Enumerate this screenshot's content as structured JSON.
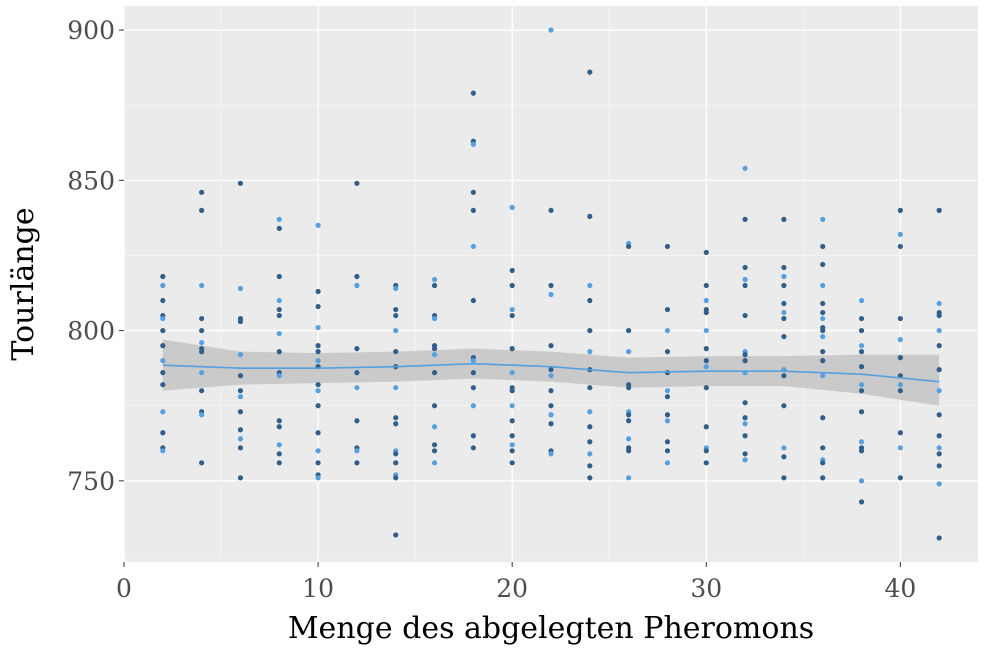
{
  "chart_data": {
    "type": "scatter",
    "title": "",
    "xlabel": "Menge des abgelegten Pheromons",
    "ylabel": "Tourlänge",
    "xlim": [
      0,
      44
    ],
    "ylim": [
      723,
      908
    ],
    "x_ticks": [
      0,
      10,
      20,
      30,
      40
    ],
    "y_ticks": [
      750,
      800,
      850,
      900
    ],
    "x_tick_labels": [
      "0",
      "10",
      "20",
      "30",
      "40"
    ],
    "y_tick_labels": [
      "750",
      "800",
      "850",
      "900"
    ],
    "grid": true,
    "legend": "none",
    "colors": {
      "panel_background": "#ebebeb",
      "grid_major": "#ffffff",
      "grid_minor": "#f5f5f5",
      "point_dark": "#2f5f8a",
      "point_light": "#56a0e0",
      "smooth_line": "#56a0e0",
      "confidence_band": "#c4c4c4",
      "axis_text": "#4d4d4d"
    },
    "points": [
      {
        "x": 2,
        "y": 818
      },
      {
        "x": 2,
        "y": 815
      },
      {
        "x": 2,
        "y": 810
      },
      {
        "x": 2,
        "y": 805
      },
      {
        "x": 2,
        "y": 804
      },
      {
        "x": 2,
        "y": 800
      },
      {
        "x": 2,
        "y": 795
      },
      {
        "x": 2,
        "y": 790
      },
      {
        "x": 2,
        "y": 786
      },
      {
        "x": 2,
        "y": 782
      },
      {
        "x": 2,
        "y": 773
      },
      {
        "x": 2,
        "y": 766
      },
      {
        "x": 2,
        "y": 761
      },
      {
        "x": 2,
        "y": 760
      },
      {
        "x": 4,
        "y": 846
      },
      {
        "x": 4,
        "y": 840
      },
      {
        "x": 4,
        "y": 815
      },
      {
        "x": 4,
        "y": 804
      },
      {
        "x": 4,
        "y": 800
      },
      {
        "x": 4,
        "y": 796
      },
      {
        "x": 4,
        "y": 794
      },
      {
        "x": 4,
        "y": 793
      },
      {
        "x": 4,
        "y": 786
      },
      {
        "x": 4,
        "y": 780
      },
      {
        "x": 4,
        "y": 773
      },
      {
        "x": 4,
        "y": 772
      },
      {
        "x": 4,
        "y": 756
      },
      {
        "x": 6,
        "y": 849
      },
      {
        "x": 6,
        "y": 814
      },
      {
        "x": 6,
        "y": 804
      },
      {
        "x": 6,
        "y": 803
      },
      {
        "x": 6,
        "y": 792
      },
      {
        "x": 6,
        "y": 785
      },
      {
        "x": 6,
        "y": 780
      },
      {
        "x": 6,
        "y": 778
      },
      {
        "x": 6,
        "y": 773
      },
      {
        "x": 6,
        "y": 767
      },
      {
        "x": 6,
        "y": 764
      },
      {
        "x": 6,
        "y": 761
      },
      {
        "x": 6,
        "y": 751
      },
      {
        "x": 8,
        "y": 837
      },
      {
        "x": 8,
        "y": 834
      },
      {
        "x": 8,
        "y": 818
      },
      {
        "x": 8,
        "y": 810
      },
      {
        "x": 8,
        "y": 807
      },
      {
        "x": 8,
        "y": 805
      },
      {
        "x": 8,
        "y": 799
      },
      {
        "x": 8,
        "y": 793
      },
      {
        "x": 8,
        "y": 786
      },
      {
        "x": 8,
        "y": 785
      },
      {
        "x": 8,
        "y": 770
      },
      {
        "x": 8,
        "y": 768
      },
      {
        "x": 8,
        "y": 762
      },
      {
        "x": 8,
        "y": 759
      },
      {
        "x": 8,
        "y": 756
      },
      {
        "x": 10,
        "y": 835
      },
      {
        "x": 10,
        "y": 813
      },
      {
        "x": 10,
        "y": 808
      },
      {
        "x": 10,
        "y": 801
      },
      {
        "x": 10,
        "y": 795
      },
      {
        "x": 10,
        "y": 793
      },
      {
        "x": 10,
        "y": 790
      },
      {
        "x": 10,
        "y": 788
      },
      {
        "x": 10,
        "y": 782
      },
      {
        "x": 10,
        "y": 780
      },
      {
        "x": 10,
        "y": 775
      },
      {
        "x": 10,
        "y": 766
      },
      {
        "x": 10,
        "y": 760
      },
      {
        "x": 10,
        "y": 756
      },
      {
        "x": 10,
        "y": 752
      },
      {
        "x": 10,
        "y": 751
      },
      {
        "x": 12,
        "y": 849
      },
      {
        "x": 12,
        "y": 818
      },
      {
        "x": 12,
        "y": 815
      },
      {
        "x": 12,
        "y": 794
      },
      {
        "x": 12,
        "y": 786
      },
      {
        "x": 12,
        "y": 781
      },
      {
        "x": 12,
        "y": 770
      },
      {
        "x": 12,
        "y": 761
      },
      {
        "x": 12,
        "y": 760
      },
      {
        "x": 12,
        "y": 756
      },
      {
        "x": 14,
        "y": 815
      },
      {
        "x": 14,
        "y": 814
      },
      {
        "x": 14,
        "y": 807
      },
      {
        "x": 14,
        "y": 805
      },
      {
        "x": 14,
        "y": 800
      },
      {
        "x": 14,
        "y": 793
      },
      {
        "x": 14,
        "y": 788
      },
      {
        "x": 14,
        "y": 781
      },
      {
        "x": 14,
        "y": 771
      },
      {
        "x": 14,
        "y": 769
      },
      {
        "x": 14,
        "y": 760
      },
      {
        "x": 14,
        "y": 759
      },
      {
        "x": 14,
        "y": 756
      },
      {
        "x": 14,
        "y": 752
      },
      {
        "x": 14,
        "y": 751
      },
      {
        "x": 14,
        "y": 732
      },
      {
        "x": 16,
        "y": 817
      },
      {
        "x": 16,
        "y": 815
      },
      {
        "x": 16,
        "y": 805
      },
      {
        "x": 16,
        "y": 804
      },
      {
        "x": 16,
        "y": 795
      },
      {
        "x": 16,
        "y": 794
      },
      {
        "x": 16,
        "y": 792
      },
      {
        "x": 16,
        "y": 786
      },
      {
        "x": 16,
        "y": 775
      },
      {
        "x": 16,
        "y": 768
      },
      {
        "x": 16,
        "y": 762
      },
      {
        "x": 16,
        "y": 760
      },
      {
        "x": 16,
        "y": 756
      },
      {
        "x": 18,
        "y": 879
      },
      {
        "x": 18,
        "y": 863
      },
      {
        "x": 18,
        "y": 862
      },
      {
        "x": 18,
        "y": 846
      },
      {
        "x": 18,
        "y": 840
      },
      {
        "x": 18,
        "y": 828
      },
      {
        "x": 18,
        "y": 810
      },
      {
        "x": 18,
        "y": 791
      },
      {
        "x": 18,
        "y": 790
      },
      {
        "x": 18,
        "y": 786
      },
      {
        "x": 18,
        "y": 781
      },
      {
        "x": 18,
        "y": 775
      },
      {
        "x": 18,
        "y": 765
      },
      {
        "x": 18,
        "y": 761
      },
      {
        "x": 20,
        "y": 841
      },
      {
        "x": 20,
        "y": 820
      },
      {
        "x": 20,
        "y": 815
      },
      {
        "x": 20,
        "y": 807
      },
      {
        "x": 20,
        "y": 805
      },
      {
        "x": 20,
        "y": 794
      },
      {
        "x": 20,
        "y": 786
      },
      {
        "x": 20,
        "y": 781
      },
      {
        "x": 20,
        "y": 780
      },
      {
        "x": 20,
        "y": 775
      },
      {
        "x": 20,
        "y": 770
      },
      {
        "x": 20,
        "y": 765
      },
      {
        "x": 20,
        "y": 762
      },
      {
        "x": 20,
        "y": 760
      },
      {
        "x": 20,
        "y": 756
      },
      {
        "x": 22,
        "y": 900
      },
      {
        "x": 22,
        "y": 840
      },
      {
        "x": 22,
        "y": 815
      },
      {
        "x": 22,
        "y": 812
      },
      {
        "x": 22,
        "y": 795
      },
      {
        "x": 22,
        "y": 787
      },
      {
        "x": 22,
        "y": 785
      },
      {
        "x": 22,
        "y": 780
      },
      {
        "x": 22,
        "y": 775
      },
      {
        "x": 22,
        "y": 772
      },
      {
        "x": 22,
        "y": 769
      },
      {
        "x": 22,
        "y": 760
      },
      {
        "x": 22,
        "y": 759
      },
      {
        "x": 24,
        "y": 886
      },
      {
        "x": 24,
        "y": 838
      },
      {
        "x": 24,
        "y": 815
      },
      {
        "x": 24,
        "y": 810
      },
      {
        "x": 24,
        "y": 800
      },
      {
        "x": 24,
        "y": 793
      },
      {
        "x": 24,
        "y": 787
      },
      {
        "x": 24,
        "y": 781
      },
      {
        "x": 24,
        "y": 773
      },
      {
        "x": 24,
        "y": 768
      },
      {
        "x": 24,
        "y": 763
      },
      {
        "x": 24,
        "y": 759
      },
      {
        "x": 24,
        "y": 755
      },
      {
        "x": 24,
        "y": 751
      },
      {
        "x": 26,
        "y": 829
      },
      {
        "x": 26,
        "y": 828
      },
      {
        "x": 26,
        "y": 800
      },
      {
        "x": 26,
        "y": 793
      },
      {
        "x": 26,
        "y": 782
      },
      {
        "x": 26,
        "y": 781
      },
      {
        "x": 26,
        "y": 773
      },
      {
        "x": 26,
        "y": 772
      },
      {
        "x": 26,
        "y": 770
      },
      {
        "x": 26,
        "y": 764
      },
      {
        "x": 26,
        "y": 761
      },
      {
        "x": 26,
        "y": 760
      },
      {
        "x": 26,
        "y": 751
      },
      {
        "x": 28,
        "y": 828
      },
      {
        "x": 28,
        "y": 807
      },
      {
        "x": 28,
        "y": 800
      },
      {
        "x": 28,
        "y": 793
      },
      {
        "x": 28,
        "y": 786
      },
      {
        "x": 28,
        "y": 780
      },
      {
        "x": 28,
        "y": 778
      },
      {
        "x": 28,
        "y": 772
      },
      {
        "x": 28,
        "y": 770
      },
      {
        "x": 28,
        "y": 763
      },
      {
        "x": 28,
        "y": 760
      },
      {
        "x": 28,
        "y": 756
      },
      {
        "x": 30,
        "y": 826
      },
      {
        "x": 30,
        "y": 815
      },
      {
        "x": 30,
        "y": 810
      },
      {
        "x": 30,
        "y": 807
      },
      {
        "x": 30,
        "y": 806
      },
      {
        "x": 30,
        "y": 800
      },
      {
        "x": 30,
        "y": 794
      },
      {
        "x": 30,
        "y": 790
      },
      {
        "x": 30,
        "y": 788
      },
      {
        "x": 30,
        "y": 781
      },
      {
        "x": 30,
        "y": 768
      },
      {
        "x": 30,
        "y": 761
      },
      {
        "x": 30,
        "y": 760
      },
      {
        "x": 30,
        "y": 756
      },
      {
        "x": 32,
        "y": 854
      },
      {
        "x": 32,
        "y": 837
      },
      {
        "x": 32,
        "y": 821
      },
      {
        "x": 32,
        "y": 817
      },
      {
        "x": 32,
        "y": 815
      },
      {
        "x": 32,
        "y": 805
      },
      {
        "x": 32,
        "y": 793
      },
      {
        "x": 32,
        "y": 792
      },
      {
        "x": 32,
        "y": 790
      },
      {
        "x": 32,
        "y": 786
      },
      {
        "x": 32,
        "y": 776
      },
      {
        "x": 32,
        "y": 771
      },
      {
        "x": 32,
        "y": 769
      },
      {
        "x": 32,
        "y": 765
      },
      {
        "x": 32,
        "y": 759
      },
      {
        "x": 32,
        "y": 757
      },
      {
        "x": 34,
        "y": 837
      },
      {
        "x": 34,
        "y": 821
      },
      {
        "x": 34,
        "y": 818
      },
      {
        "x": 34,
        "y": 815
      },
      {
        "x": 34,
        "y": 809
      },
      {
        "x": 34,
        "y": 806
      },
      {
        "x": 34,
        "y": 804
      },
      {
        "x": 34,
        "y": 798
      },
      {
        "x": 34,
        "y": 787
      },
      {
        "x": 34,
        "y": 785
      },
      {
        "x": 34,
        "y": 775
      },
      {
        "x": 34,
        "y": 761
      },
      {
        "x": 34,
        "y": 758
      },
      {
        "x": 34,
        "y": 751
      },
      {
        "x": 36,
        "y": 837
      },
      {
        "x": 36,
        "y": 828
      },
      {
        "x": 36,
        "y": 822
      },
      {
        "x": 36,
        "y": 815
      },
      {
        "x": 36,
        "y": 809
      },
      {
        "x": 36,
        "y": 806
      },
      {
        "x": 36,
        "y": 804
      },
      {
        "x": 36,
        "y": 801
      },
      {
        "x": 36,
        "y": 800
      },
      {
        "x": 36,
        "y": 798
      },
      {
        "x": 36,
        "y": 793
      },
      {
        "x": 36,
        "y": 790
      },
      {
        "x": 36,
        "y": 785
      },
      {
        "x": 36,
        "y": 771
      },
      {
        "x": 36,
        "y": 761
      },
      {
        "x": 36,
        "y": 757
      },
      {
        "x": 36,
        "y": 756
      },
      {
        "x": 36,
        "y": 751
      },
      {
        "x": 38,
        "y": 810
      },
      {
        "x": 38,
        "y": 804
      },
      {
        "x": 38,
        "y": 800
      },
      {
        "x": 38,
        "y": 795
      },
      {
        "x": 38,
        "y": 793
      },
      {
        "x": 38,
        "y": 788
      },
      {
        "x": 38,
        "y": 782
      },
      {
        "x": 38,
        "y": 780
      },
      {
        "x": 38,
        "y": 773
      },
      {
        "x": 38,
        "y": 763
      },
      {
        "x": 38,
        "y": 761
      },
      {
        "x": 38,
        "y": 760
      },
      {
        "x": 38,
        "y": 750
      },
      {
        "x": 38,
        "y": 743
      },
      {
        "x": 40,
        "y": 840
      },
      {
        "x": 40,
        "y": 832
      },
      {
        "x": 40,
        "y": 828
      },
      {
        "x": 40,
        "y": 804
      },
      {
        "x": 40,
        "y": 797
      },
      {
        "x": 40,
        "y": 791
      },
      {
        "x": 40,
        "y": 785
      },
      {
        "x": 40,
        "y": 782
      },
      {
        "x": 40,
        "y": 780
      },
      {
        "x": 40,
        "y": 766
      },
      {
        "x": 40,
        "y": 761
      },
      {
        "x": 40,
        "y": 751
      },
      {
        "x": 42,
        "y": 840
      },
      {
        "x": 42,
        "y": 809
      },
      {
        "x": 42,
        "y": 806
      },
      {
        "x": 42,
        "y": 805
      },
      {
        "x": 42,
        "y": 800
      },
      {
        "x": 42,
        "y": 795
      },
      {
        "x": 42,
        "y": 787
      },
      {
        "x": 42,
        "y": 780
      },
      {
        "x": 42,
        "y": 772
      },
      {
        "x": 42,
        "y": 765
      },
      {
        "x": 42,
        "y": 761
      },
      {
        "x": 42,
        "y": 759
      },
      {
        "x": 42,
        "y": 755
      },
      {
        "x": 42,
        "y": 749
      },
      {
        "x": 42,
        "y": 731
      }
    ],
    "smooth": {
      "x": [
        2,
        6,
        10,
        14,
        18,
        22,
        26,
        30,
        34,
        38,
        42
      ],
      "y": [
        788.5,
        787.5,
        787.5,
        788,
        789,
        788,
        786,
        786.5,
        786.5,
        785.5,
        783
      ],
      "ci_lower": [
        780,
        782,
        782.5,
        783,
        784,
        783,
        781,
        781.5,
        781.5,
        779,
        775
      ],
      "ci_upper": [
        797,
        793,
        792.5,
        793,
        794,
        793,
        791,
        791.5,
        791.5,
        792,
        792
      ]
    }
  }
}
